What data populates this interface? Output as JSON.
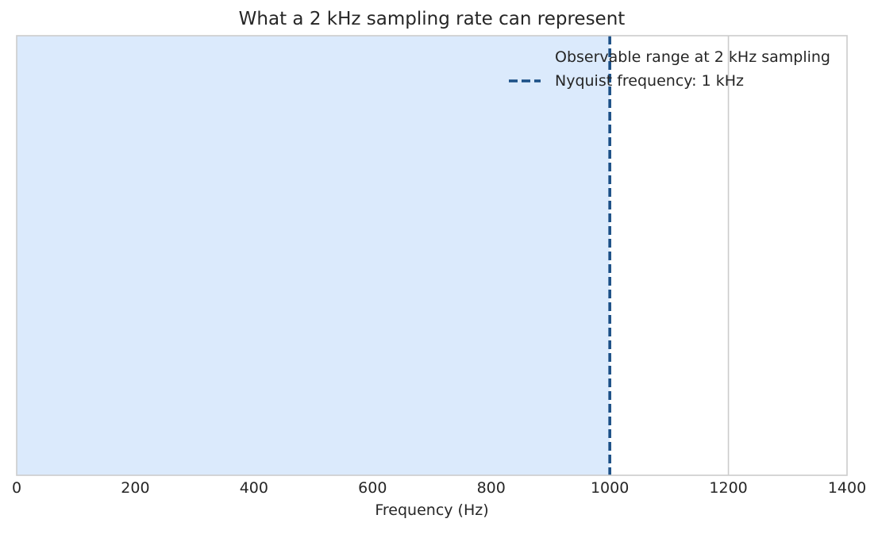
{
  "chart_data": {
    "type": "area",
    "title": "What a 2 kHz sampling rate can represent",
    "xlabel": "Frequency (Hz)",
    "ylabel": "",
    "xlim": [
      0,
      1400
    ],
    "x_ticks": [
      0,
      200,
      400,
      600,
      800,
      1000,
      1200,
      1400
    ],
    "x_tick_labels": [
      "0",
      "200",
      "400",
      "600",
      "800",
      "1000",
      "1200",
      "1400"
    ],
    "y_ticks_visible": false,
    "grid": "vertical",
    "legend_position": "top-right",
    "shaded_regions": [
      {
        "name": "Observable range at 2 kHz sampling",
        "x_start": 0,
        "x_end": 1000,
        "color": "#dbeafc"
      }
    ],
    "vertical_lines": [
      {
        "name": "Nyquist frequency: 1 kHz",
        "x": 1000,
        "style": "dashed",
        "color": "#1b4f86"
      }
    ],
    "legend": [
      {
        "label": "Observable range at 2 kHz sampling",
        "kind": "patch"
      },
      {
        "label": "Nyquist frequency: 1 kHz",
        "kind": "dashed-line"
      }
    ]
  },
  "colors": {
    "axes_border": "#cccccc",
    "grid": "#cccccc",
    "text": "#262626"
  }
}
